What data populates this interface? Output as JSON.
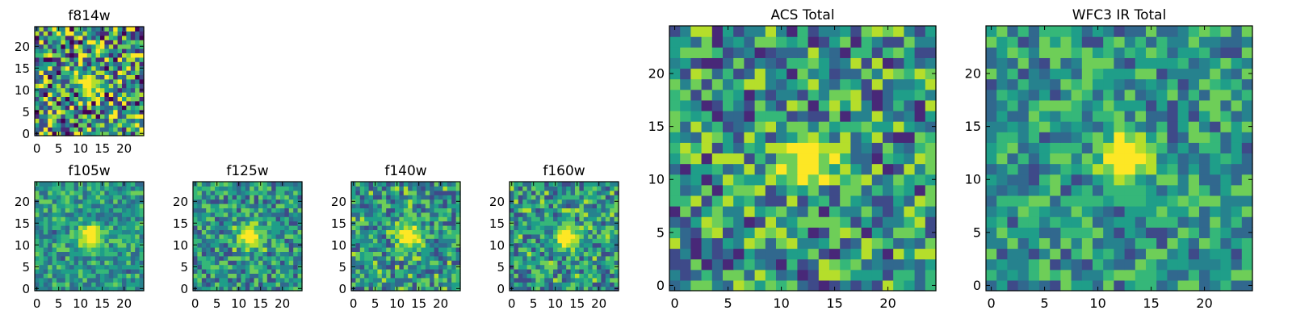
{
  "chart_data": [
    {
      "type": "heatmap",
      "title": "f814w",
      "x_ticks": [
        "0",
        "5",
        "10",
        "15",
        "20"
      ],
      "y_ticks": [
        "0",
        "5",
        "10",
        "15",
        "20"
      ],
      "xlim": [
        0,
        25
      ],
      "ylim": [
        0,
        25
      ],
      "grid_size": [
        25,
        25
      ],
      "source_center": [
        12,
        11.5
      ],
      "source_radius": 1.6,
      "noise_level": 0.95,
      "seed": 7
    },
    {
      "type": "heatmap",
      "title": "f105w",
      "x_ticks": [
        "0",
        "5",
        "10",
        "15",
        "20"
      ],
      "y_ticks": [
        "0",
        "5",
        "10",
        "15",
        "20"
      ],
      "xlim": [
        0,
        25
      ],
      "ylim": [
        0,
        25
      ],
      "grid_size": [
        25,
        25
      ],
      "source_center": [
        12.5,
        12
      ],
      "source_radius": 2.0,
      "noise_level": 0.45,
      "seed": 11
    },
    {
      "type": "heatmap",
      "title": "f125w",
      "x_ticks": [
        "0",
        "5",
        "10",
        "15",
        "20"
      ],
      "y_ticks": [
        "0",
        "5",
        "10",
        "15",
        "20"
      ],
      "xlim": [
        0,
        25
      ],
      "ylim": [
        0,
        25
      ],
      "grid_size": [
        25,
        25
      ],
      "source_center": [
        12.5,
        12
      ],
      "source_radius": 2.0,
      "noise_level": 0.55,
      "seed": 23
    },
    {
      "type": "heatmap",
      "title": "f140w",
      "x_ticks": [
        "0",
        "5",
        "10",
        "15",
        "20"
      ],
      "y_ticks": [
        "0",
        "5",
        "10",
        "15",
        "20"
      ],
      "xlim": [
        0,
        25
      ],
      "ylim": [
        0,
        25
      ],
      "grid_size": [
        25,
        25
      ],
      "source_center": [
        12.5,
        12
      ],
      "source_radius": 2.0,
      "noise_level": 0.6,
      "seed": 31
    },
    {
      "type": "heatmap",
      "title": "f160w",
      "x_ticks": [
        "0",
        "5",
        "10",
        "15",
        "20"
      ],
      "y_ticks": [
        "0",
        "5",
        "10",
        "15",
        "20"
      ],
      "xlim": [
        0,
        25
      ],
      "ylim": [
        0,
        25
      ],
      "grid_size": [
        25,
        25
      ],
      "source_center": [
        12.5,
        12
      ],
      "source_radius": 2.0,
      "noise_level": 0.6,
      "seed": 43
    },
    {
      "type": "heatmap",
      "title": "ACS Total",
      "x_ticks": [
        "0",
        "5",
        "10",
        "15",
        "20"
      ],
      "y_ticks": [
        "0",
        "5",
        "10",
        "15",
        "20"
      ],
      "xlim": [
        0,
        25
      ],
      "ylim": [
        0,
        25
      ],
      "grid_size": [
        25,
        25
      ],
      "source_center": [
        12.5,
        12
      ],
      "source_radius": 1.8,
      "noise_level": 0.75,
      "seed": 57
    },
    {
      "type": "heatmap",
      "title": "WFC3 IR Total",
      "x_ticks": [
        "0",
        "5",
        "10",
        "15",
        "20"
      ],
      "y_ticks": [
        "0",
        "5",
        "10",
        "15",
        "20"
      ],
      "xlim": [
        0,
        25
      ],
      "ylim": [
        0,
        25
      ],
      "grid_size": [
        25,
        25
      ],
      "source_center": [
        12.5,
        12
      ],
      "source_radius": 1.8,
      "noise_level": 0.55,
      "seed": 69
    }
  ],
  "colormap": [
    "#440154",
    "#482878",
    "#3e4a89",
    "#31688e",
    "#26828e",
    "#1f9e89",
    "#35b779",
    "#6ece58",
    "#b5de2b",
    "#fde725"
  ]
}
